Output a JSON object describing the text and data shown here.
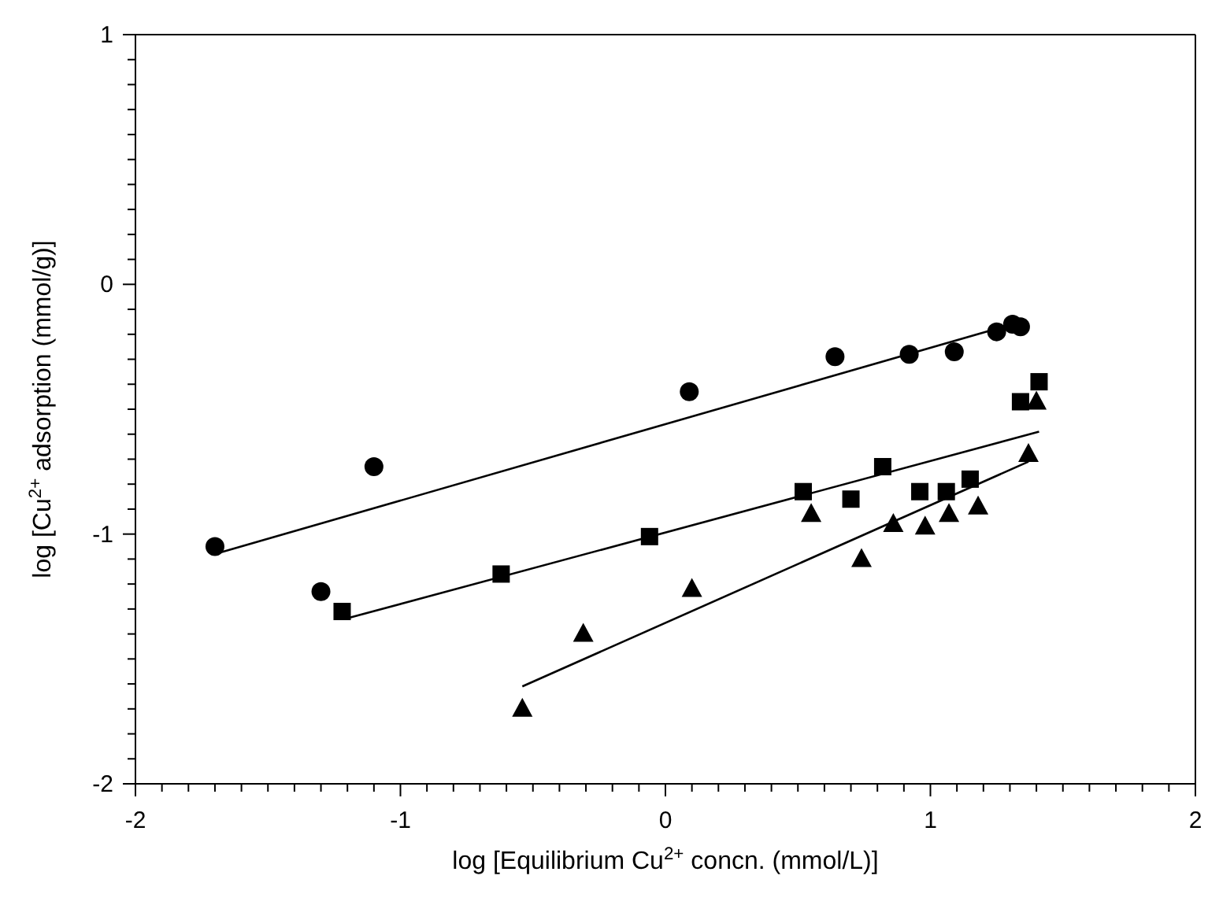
{
  "chart_data": {
    "type": "scatter",
    "xlabel": "log [Equilibrium Cu$^{2+}$ concn. (mmol/L)]",
    "ylabel": "log [Cu$^{2+}$ adsorption (mmol/g)]",
    "xlim": [
      -2,
      2
    ],
    "ylim": [
      -2,
      1
    ],
    "xticks": [
      -2,
      {
        "value": -1.9,
        "label": null
      },
      {
        "value": -1.8,
        "label": null
      },
      {
        "value": -1.7,
        "label": null
      },
      {
        "value": -1.6,
        "label": null
      },
      {
        "value": -1.5,
        "label": null
      },
      {
        "value": -1.4,
        "label": null
      },
      {
        "value": -1.3,
        "label": null
      },
      {
        "value": -1.2,
        "label": null
      },
      {
        "value": -1.1,
        "label": null
      },
      -1,
      {
        "value": -0.9,
        "label": null
      },
      {
        "value": -0.8,
        "label": null
      },
      {
        "value": -0.7,
        "label": null
      },
      {
        "value": -0.6,
        "label": null
      },
      {
        "value": -0.5,
        "label": null
      },
      {
        "value": -0.4,
        "label": null
      },
      {
        "value": -0.3,
        "label": null
      },
      {
        "value": -0.2,
        "label": null
      },
      {
        "value": -0.1,
        "label": null
      },
      0,
      {
        "value": 0.1,
        "label": null
      },
      {
        "value": 0.2,
        "label": null
      },
      {
        "value": 0.3,
        "label": null
      },
      {
        "value": 0.4,
        "label": null
      },
      {
        "value": 0.5,
        "label": null
      },
      {
        "value": 0.6,
        "label": null
      },
      {
        "value": 0.7,
        "label": null
      },
      {
        "value": 0.8,
        "label": null
      },
      {
        "value": 0.9,
        "label": null
      },
      1,
      {
        "value": 1.1,
        "label": null
      },
      {
        "value": 1.2,
        "label": null
      },
      {
        "value": 1.3,
        "label": null
      },
      {
        "value": 1.4,
        "label": null
      },
      {
        "value": 1.5,
        "label": null
      },
      {
        "value": 1.6,
        "label": null
      },
      {
        "value": 1.7,
        "label": null
      },
      {
        "value": 1.8,
        "label": null
      },
      {
        "value": 1.9,
        "label": null
      },
      2
    ],
    "yticks": [
      -2,
      {
        "value": -1.9,
        "label": null
      },
      {
        "value": -1.8,
        "label": null
      },
      {
        "value": -1.7,
        "label": null
      },
      {
        "value": -1.6,
        "label": null
      },
      {
        "value": -1.5,
        "label": null
      },
      {
        "value": -1.4,
        "label": null
      },
      {
        "value": -1.3,
        "label": null
      },
      {
        "value": -1.2,
        "label": null
      },
      {
        "value": -1.1,
        "label": null
      },
      -1,
      {
        "value": -0.9,
        "label": null
      },
      {
        "value": -0.8,
        "label": null
      },
      {
        "value": -0.7,
        "label": null
      },
      {
        "value": -0.6,
        "label": null
      },
      {
        "value": -0.5,
        "label": null
      },
      {
        "value": -0.4,
        "label": null
      },
      {
        "value": -0.3,
        "label": null
      },
      {
        "value": -0.2,
        "label": null
      },
      {
        "value": -0.1,
        "label": null
      },
      0,
      {
        "value": 0.1,
        "label": null
      },
      {
        "value": 0.2,
        "label": null
      },
      {
        "value": 0.3,
        "label": null
      },
      {
        "value": 0.4,
        "label": null
      },
      {
        "value": 0.5,
        "label": null
      },
      {
        "value": 0.6,
        "label": null
      },
      {
        "value": 0.7,
        "label": null
      },
      {
        "value": 0.8,
        "label": null
      },
      {
        "value": 0.9,
        "label": null
      },
      1
    ],
    "grid": false,
    "legend": false,
    "series": [
      {
        "marker": "circle",
        "color": "#000000",
        "x": [
          -1.7,
          -1.3,
          -1.1,
          0.09,
          0.64,
          0.92,
          1.09,
          1.25,
          1.31,
          1.34
        ],
        "values": [
          -1.05,
          -1.23,
          -0.73,
          -0.43,
          -0.29,
          -0.28,
          -0.27,
          -0.19,
          -0.16,
          -0.17
        ]
      },
      {
        "marker": "square",
        "color": "#000000",
        "x": [
          -1.22,
          -0.62,
          -0.06,
          0.52,
          0.7,
          0.82,
          0.96,
          1.06,
          1.15,
          1.34,
          1.41
        ],
        "values": [
          -1.31,
          -1.16,
          -1.01,
          -0.83,
          -0.86,
          -0.73,
          -0.83,
          -0.83,
          -0.78,
          -0.47,
          -0.39
        ]
      },
      {
        "marker": "triangle",
        "color": "#000000",
        "x": [
          -0.54,
          -0.31,
          0.1,
          0.55,
          0.74,
          0.86,
          0.98,
          1.07,
          1.18,
          1.37,
          1.4
        ],
        "values": [
          -1.7,
          -1.4,
          -1.22,
          -0.92,
          -1.1,
          -0.96,
          -0.97,
          -0.92,
          -0.89,
          -0.68,
          -0.47
        ]
      },
      {
        "type": "line",
        "marker": "none",
        "line_style": "solid",
        "color": "#000000",
        "x": [
          -1.7,
          1.34
        ],
        "values": [
          -1.08,
          -0.15
        ]
      },
      {
        "type": "line",
        "marker": "none",
        "line_style": "solid",
        "color": "#000000",
        "x": [
          -1.21,
          1.41
        ],
        "values": [
          -1.34,
          -0.59
        ]
      },
      {
        "type": "line",
        "marker": "none",
        "line_style": "solid",
        "color": "#000000",
        "x": [
          -0.54,
          1.37
        ],
        "values": [
          -1.61,
          -0.71
        ]
      }
    ]
  }
}
